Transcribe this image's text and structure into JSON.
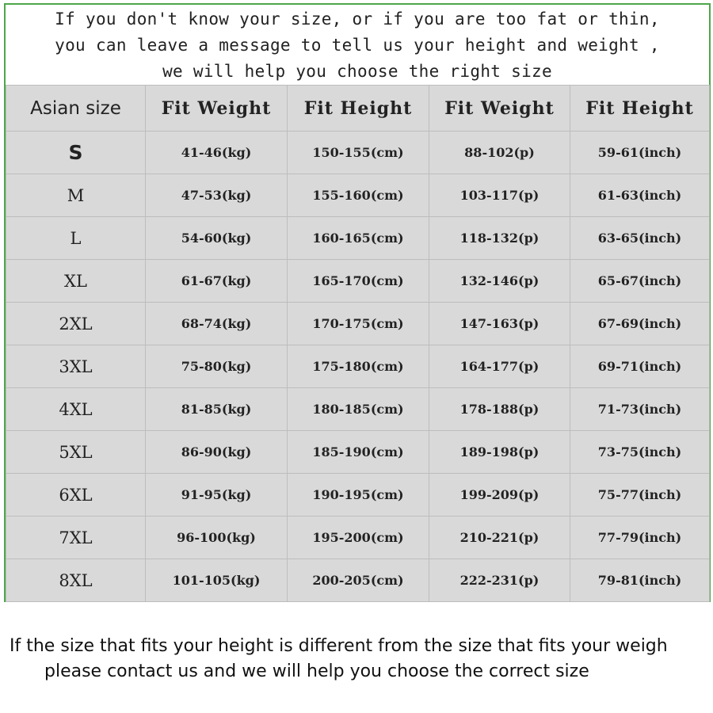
{
  "intro": [
    "If you don't know your size, or if you are too fat or thin,",
    "you can leave a message to tell us your height and weight ,",
    "we will help you choose the right size"
  ],
  "table": {
    "headers": [
      "Asian size",
      "Fit Weight",
      "Fit Height",
      "Fit Weight",
      "Fit Height"
    ],
    "rows": [
      [
        "S",
        "41-46(kg)",
        "150-155(cm)",
        "88-102(p)",
        "59-61(inch)"
      ],
      [
        "M",
        "47-53(kg)",
        "155-160(cm)",
        "103-117(p)",
        "61-63(inch)"
      ],
      [
        "L",
        "54-60(kg)",
        "160-165(cm)",
        "118-132(p)",
        "63-65(inch)"
      ],
      [
        "XL",
        "61-67(kg)",
        "165-170(cm)",
        "132-146(p)",
        "65-67(inch)"
      ],
      [
        "2XL",
        "68-74(kg)",
        "170-175(cm)",
        "147-163(p)",
        "67-69(inch)"
      ],
      [
        "3XL",
        "75-80(kg)",
        "175-180(cm)",
        "164-177(p)",
        "69-71(inch)"
      ],
      [
        "4XL",
        "81-85(kg)",
        "180-185(cm)",
        "178-188(p)",
        "71-73(inch)"
      ],
      [
        "5XL",
        "86-90(kg)",
        "185-190(cm)",
        "189-198(p)",
        "73-75(inch)"
      ],
      [
        "6XL",
        "91-95(kg)",
        "190-195(cm)",
        "199-209(p)",
        "75-77(inch)"
      ],
      [
        "7XL",
        "96-100(kg)",
        "195-200(cm)",
        "210-221(p)",
        "77-79(inch)"
      ],
      [
        "8XL",
        "101-105(kg)",
        "200-205(cm)",
        "222-231(p)",
        "79-81(inch)"
      ]
    ]
  },
  "note": [
    "If the size that fits your height is different from the size that fits your weigh",
    "please contact us and we will help you choose the correct size"
  ],
  "colors": {
    "border": "#4ea64a",
    "table_bg": "#d9d9d9"
  }
}
